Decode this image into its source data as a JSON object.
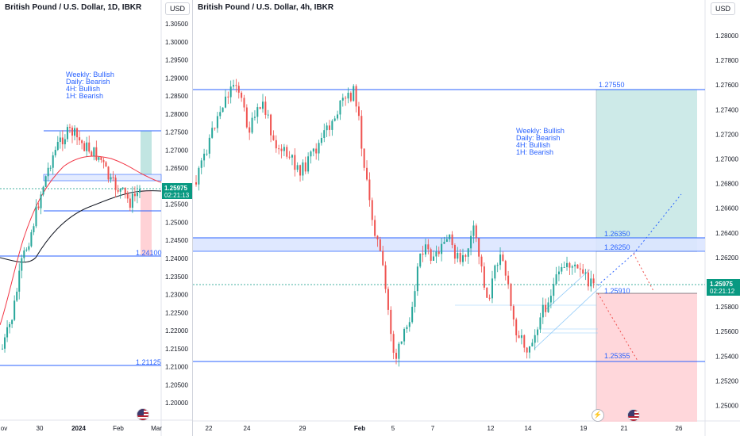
{
  "left_pane": {
    "title": "British Pound / U.S. Dollar, 1D, IBKR",
    "currency_button": "USD",
    "y_ticks": [
      "1.30500",
      "1.30000",
      "1.29500",
      "1.29000",
      "1.28500",
      "1.28000",
      "1.27500",
      "1.27000",
      "1.26500",
      "1.26000",
      "1.25500",
      "1.25000",
      "1.24500",
      "1.24000",
      "1.23500",
      "1.23000",
      "1.22500",
      "1.22000",
      "1.21500",
      "1.21000",
      "1.20500",
      "1.20000"
    ],
    "x_ticks": [
      "ov",
      "30",
      "2024",
      "Feb",
      "Mar"
    ],
    "price_badge": {
      "value": "1.25975",
      "countdown": "02:21:13"
    },
    "level_labels": [
      "1.24100",
      "1.21125"
    ],
    "annotation": [
      "Weekly: Bullish",
      "Daily: Bearish",
      "4H: Bullish",
      "1H: Bearish"
    ]
  },
  "right_pane": {
    "title": "British Pound / U.S. Dollar, 4h, IBKR",
    "currency_button": "USD",
    "y_ticks": [
      "1.28000",
      "1.27800",
      "1.27600",
      "1.27400",
      "1.27200",
      "1.27000",
      "1.26800",
      "1.26600",
      "1.26400",
      "1.26200",
      "1.26000",
      "1.25800",
      "1.25600",
      "1.25400",
      "1.25200",
      "1.25000"
    ],
    "x_ticks": [
      "22",
      "24",
      "29",
      "Feb",
      "5",
      "7",
      "12",
      "14",
      "19",
      "21",
      "26"
    ],
    "price_badge": {
      "value": "1.25975",
      "countdown": "02:21:12"
    },
    "level_labels": [
      "1.27550",
      "1.26350",
      "1.26250",
      "1.25910",
      "1.25355"
    ],
    "annotation": [
      "Weekly: Bullish",
      "Daily: Bearish",
      "4H: Bullish",
      "1H: Bearish"
    ]
  },
  "colors": {
    "up_candle": "#26a69a",
    "down_candle": "#ef5350",
    "level_line": "#2962ff",
    "annotation_text": "#2962ff",
    "target_zone": "#b2dfdb",
    "stop_zone": "#ffcdd2",
    "price_badge": "#089981",
    "ema_black": "#131722",
    "ema_red": "#f23645"
  },
  "icons": [
    "us-flag-icon",
    "lightning-icon"
  ]
}
